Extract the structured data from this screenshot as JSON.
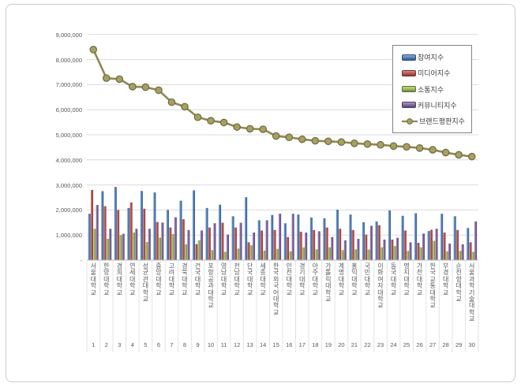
{
  "chart_data": {
    "type": "bar",
    "title": "",
    "grid": true,
    "legend_position": "top-right",
    "y_axis": {
      "min": 0,
      "max": 9000000,
      "tick_interval": 1000000,
      "zero_label": "-",
      "tick_labels": [
        "9,000,000",
        "8,000,000",
        "7,000,000",
        "6,000,000",
        "5,000,000",
        "4,000,000",
        "3,000,000",
        "2,000,000",
        "1,000,000",
        "-"
      ]
    },
    "categories": [
      {
        "rank": 1,
        "name": "서울대학교"
      },
      {
        "rank": 2,
        "name": "한양대학교"
      },
      {
        "rank": 3,
        "name": "경희대학교"
      },
      {
        "rank": 4,
        "name": "연세대학교"
      },
      {
        "rank": 5,
        "name": "성균관대학교"
      },
      {
        "rank": 6,
        "name": "중앙대학교"
      },
      {
        "rank": 7,
        "name": "고려대학교"
      },
      {
        "rank": 8,
        "name": "경북대학교"
      },
      {
        "rank": 9,
        "name": "건국대학교"
      },
      {
        "rank": 10,
        "name": "포항공과대학교"
      },
      {
        "rank": 11,
        "name": "영남대학교"
      },
      {
        "rank": 12,
        "name": "전남대학교"
      },
      {
        "rank": 13,
        "name": "단국대학교"
      },
      {
        "rank": 14,
        "name": "세종대학교"
      },
      {
        "rank": 15,
        "name": "한국외국어대학교"
      },
      {
        "rank": 16,
        "name": "인천대학교"
      },
      {
        "rank": 17,
        "name": "경기대학교"
      },
      {
        "rank": 18,
        "name": "아주대학교"
      },
      {
        "rank": 19,
        "name": "가톨릭대학교"
      },
      {
        "rank": 20,
        "name": "계명대학교"
      },
      {
        "rank": 21,
        "name": "홍익대학교"
      },
      {
        "rank": 22,
        "name": "국민대학교"
      },
      {
        "rank": 23,
        "name": "이화여자대학교"
      },
      {
        "rank": 24,
        "name": "동국대학교"
      },
      {
        "rank": 25,
        "name": "명지대학교"
      },
      {
        "rank": 26,
        "name": "가천대학교"
      },
      {
        "rank": 27,
        "name": "한국교통대학교"
      },
      {
        "rank": 28,
        "name": "부경대학교"
      },
      {
        "rank": 29,
        "name": "순천향대학교"
      },
      {
        "rank": 30,
        "name": "서울과학기술대학교"
      }
    ],
    "bar_series": [
      {
        "name": "참여지수",
        "color": "#4f81bd",
        "values": [
          1850000,
          2750000,
          2920000,
          2080000,
          2760000,
          2700000,
          2000000,
          2370000,
          2780000,
          2080000,
          2210000,
          1750000,
          2510000,
          1590000,
          1800000,
          1470000,
          1820000,
          1700000,
          1670000,
          2010000,
          1820000,
          1510000,
          1540000,
          1980000,
          1770000,
          1870000,
          1160000,
          1850000,
          1750000,
          1280000
        ]
      },
      {
        "name": "미디어지수",
        "color": "#c0504d",
        "values": [
          2800000,
          2150000,
          2000000,
          2300000,
          2050000,
          1520000,
          1300000,
          1630000,
          640000,
          1300000,
          1490000,
          1300000,
          710000,
          1180000,
          1200000,
          920000,
          1130000,
          1200000,
          1300000,
          1250000,
          1200000,
          1020000,
          1390000,
          820000,
          1180000,
          690000,
          1210000,
          1100000,
          1200000,
          710000
        ]
      },
      {
        "name": "소통지수",
        "color": "#9bbb59",
        "values": [
          1250000,
          850000,
          1000000,
          1100000,
          720000,
          900000,
          1040000,
          630000,
          790000,
          400000,
          330000,
          460000,
          590000,
          380000,
          450000,
          350000,
          510000,
          430000,
          510000,
          400000,
          430000,
          420000,
          510000,
          560000,
          370000,
          510000,
          770000,
          350000,
          370000,
          330000
        ]
      },
      {
        "name": "커뮤니티지수",
        "color": "#8064a2",
        "values": [
          2200000,
          1250000,
          1050000,
          1250000,
          1250000,
          1500000,
          1710000,
          1200000,
          1180000,
          1470000,
          1020000,
          1490000,
          1100000,
          1590000,
          1850000,
          1850000,
          1100000,
          1150000,
          920000,
          790000,
          850000,
          1370000,
          820000,
          890000,
          710000,
          1060000,
          1250000,
          660000,
          630000,
          1540000
        ]
      }
    ],
    "line_series": {
      "name": "브랜드평판지수",
      "color": "#8e8752",
      "marker_fill": "#a7a161",
      "marker_edge": "#6e6840",
      "values": [
        8400000,
        7260000,
        7220000,
        6920000,
        6900000,
        6780000,
        6300000,
        6120000,
        5700000,
        5560000,
        5490000,
        5310000,
        5240000,
        5220000,
        4950000,
        4900000,
        4820000,
        4760000,
        4740000,
        4710000,
        4660000,
        4630000,
        4600000,
        4550000,
        4520000,
        4470000,
        4400000,
        4290000,
        4200000,
        4130000
      ]
    }
  }
}
